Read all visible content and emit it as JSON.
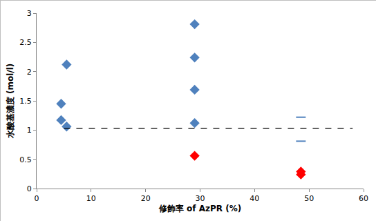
{
  "chart_data": {
    "type": "scatter",
    "x_label": "修飾率 of AzPR (%)",
    "y_label": "水酸基濃度 (mol/l)",
    "xlim": [
      0,
      60
    ],
    "xticks": [
      0,
      10,
      20,
      30,
      40,
      50,
      60
    ],
    "ylim": [
      0,
      3
    ],
    "yticks": [
      0,
      0.5,
      1,
      1.5,
      2,
      2.5,
      3
    ],
    "grid": false,
    "series": [
      {
        "type": "scatter",
        "marker": "diamond",
        "color": "#4f81bd",
        "x": [
          4.5,
          4.5,
          5.5,
          5.5,
          29,
          29,
          29,
          29
        ],
        "values": [
          1.45,
          1.17,
          2.12,
          1.06,
          2.81,
          2.24,
          1.69,
          1.12
        ]
      },
      {
        "type": "scatter",
        "marker": "diamond",
        "color": "#ff0000",
        "x": [
          29,
          48.5,
          48.5
        ],
        "values": [
          0.56,
          0.29,
          0.24
        ]
      },
      {
        "type": "scatter",
        "marker": "dash",
        "color": "#4f81bd",
        "x": [
          48.5,
          48.5
        ],
        "values": [
          1.22,
          0.81
        ]
      },
      {
        "type": "line",
        "line_style": "dash",
        "color": "#000000",
        "x": [
          5,
          58
        ],
        "values": [
          1.03,
          1.03
        ]
      }
    ]
  }
}
